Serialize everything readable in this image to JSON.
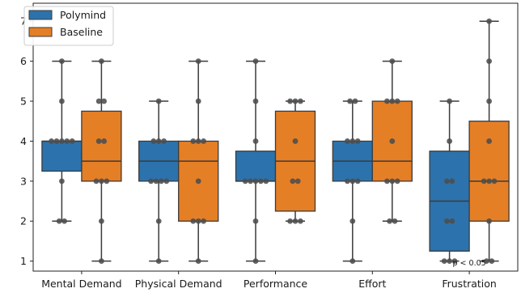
{
  "chart_data": {
    "type": "box",
    "categories": [
      "Mental Demand",
      "Physical Demand",
      "Performance",
      "Effort",
      "Frustration"
    ],
    "y_ticks": [
      1,
      2,
      3,
      4,
      5,
      6,
      7
    ],
    "ylim": [
      0.75,
      7.45
    ],
    "grid": false,
    "legend_position": "top-left",
    "series": [
      {
        "name": "Polymind",
        "color": "#2c73ad",
        "boxes": [
          {
            "whisker_low": 2,
            "q1": 3.25,
            "median": 4,
            "q3": 4,
            "whisker_high": 6,
            "points": [
              6,
              5,
              4,
              4,
              4,
              4,
              4,
              3,
              2,
              2
            ]
          },
          {
            "whisker_low": 1,
            "q1": 3,
            "median": 3.5,
            "q3": 4,
            "whisker_high": 5,
            "points": [
              5,
              4,
              4,
              4,
              3,
              3,
              3,
              3,
              2,
              1
            ]
          },
          {
            "whisker_low": 1,
            "q1": 3,
            "median": 3,
            "q3": 3.75,
            "whisker_high": 6,
            "points": [
              6,
              5,
              4,
              3,
              3,
              3,
              3,
              3,
              2,
              1
            ]
          },
          {
            "whisker_low": 1,
            "q1": 3,
            "median": 3.5,
            "q3": 4,
            "whisker_high": 5,
            "points": [
              5,
              5,
              4,
              4,
              4,
              3,
              3,
              3,
              2,
              1
            ]
          },
          {
            "whisker_low": 1,
            "q1": 1.25,
            "median": 2.5,
            "q3": 3.75,
            "whisker_high": 5,
            "points": [
              5,
              4,
              3,
              3,
              2,
              2,
              1,
              1,
              1
            ]
          }
        ]
      },
      {
        "name": "Baseline",
        "color": "#e57f26",
        "boxes": [
          {
            "whisker_low": 1,
            "q1": 3,
            "median": 3.5,
            "q3": 4.75,
            "whisker_high": 6,
            "points": [
              6,
              5,
              5,
              4,
              4,
              3,
              3,
              3,
              2,
              1
            ]
          },
          {
            "whisker_low": 1,
            "q1": 2,
            "median": 3.5,
            "q3": 4,
            "whisker_high": 6,
            "points": [
              6,
              5,
              4,
              4,
              4,
              3,
              2,
              2,
              2,
              1
            ]
          },
          {
            "whisker_low": 2,
            "q1": 2.25,
            "median": 3.5,
            "q3": 4.75,
            "whisker_high": 5,
            "points": [
              5,
              5,
              5,
              4,
              3,
              3,
              2,
              2,
              2
            ]
          },
          {
            "whisker_low": 2,
            "q1": 3,
            "median": 3.5,
            "q3": 5,
            "whisker_high": 6,
            "points": [
              6,
              5,
              5,
              5,
              4,
              3,
              3,
              3,
              2,
              2
            ]
          },
          {
            "whisker_low": 1,
            "q1": 2,
            "median": 3,
            "q3": 4.5,
            "whisker_high": 7,
            "points": [
              7,
              6,
              5,
              4,
              3,
              3,
              3,
              2,
              1,
              1
            ]
          }
        ]
      }
    ],
    "annotations": [
      {
        "category": "Frustration",
        "text": "p < 0.05"
      }
    ]
  }
}
